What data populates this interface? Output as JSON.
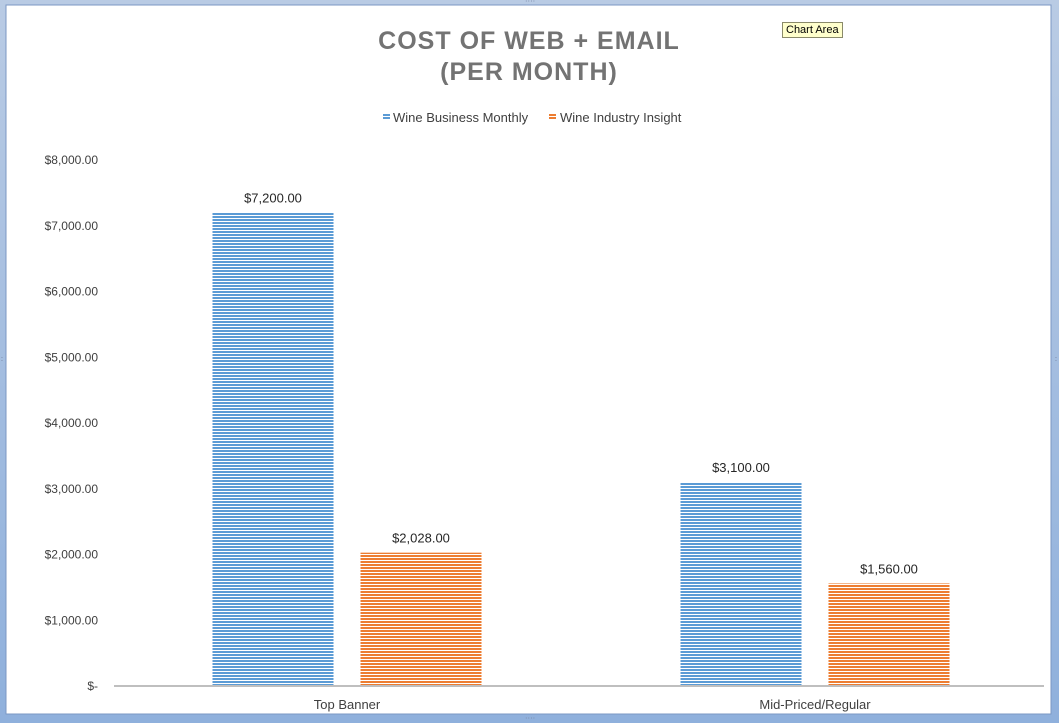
{
  "tooltip": "Chart Area",
  "chart_data": {
    "type": "bar",
    "title_line1": "COST OF WEB + EMAIL",
    "title_line2": "(PER MONTH)",
    "categories": [
      "Top Banner",
      "Mid-Priced/Regular"
    ],
    "series": [
      {
        "name": "Wine Business Monthly",
        "values": [
          7200,
          3100
        ],
        "labels": [
          "$7,200.00",
          "$3,100.00"
        ],
        "color": "#5b9bd5"
      },
      {
        "name": "Wine Industry Insight",
        "values": [
          2028,
          1560
        ],
        "labels": [
          "$2,028.00",
          "$1,560.00"
        ],
        "color": "#ed7d31"
      }
    ],
    "ylim": [
      0,
      8000
    ],
    "yticks": [
      0,
      1000,
      2000,
      3000,
      4000,
      5000,
      6000,
      7000,
      8000
    ],
    "ytick_labels": [
      "$-",
      "$1,000.00",
      "$2,000.00",
      "$3,000.00",
      "$4,000.00",
      "$5,000.00",
      "$6,000.00",
      "$7,000.00",
      "$8,000.00"
    ],
    "legend_position": "top",
    "grid": false
  }
}
